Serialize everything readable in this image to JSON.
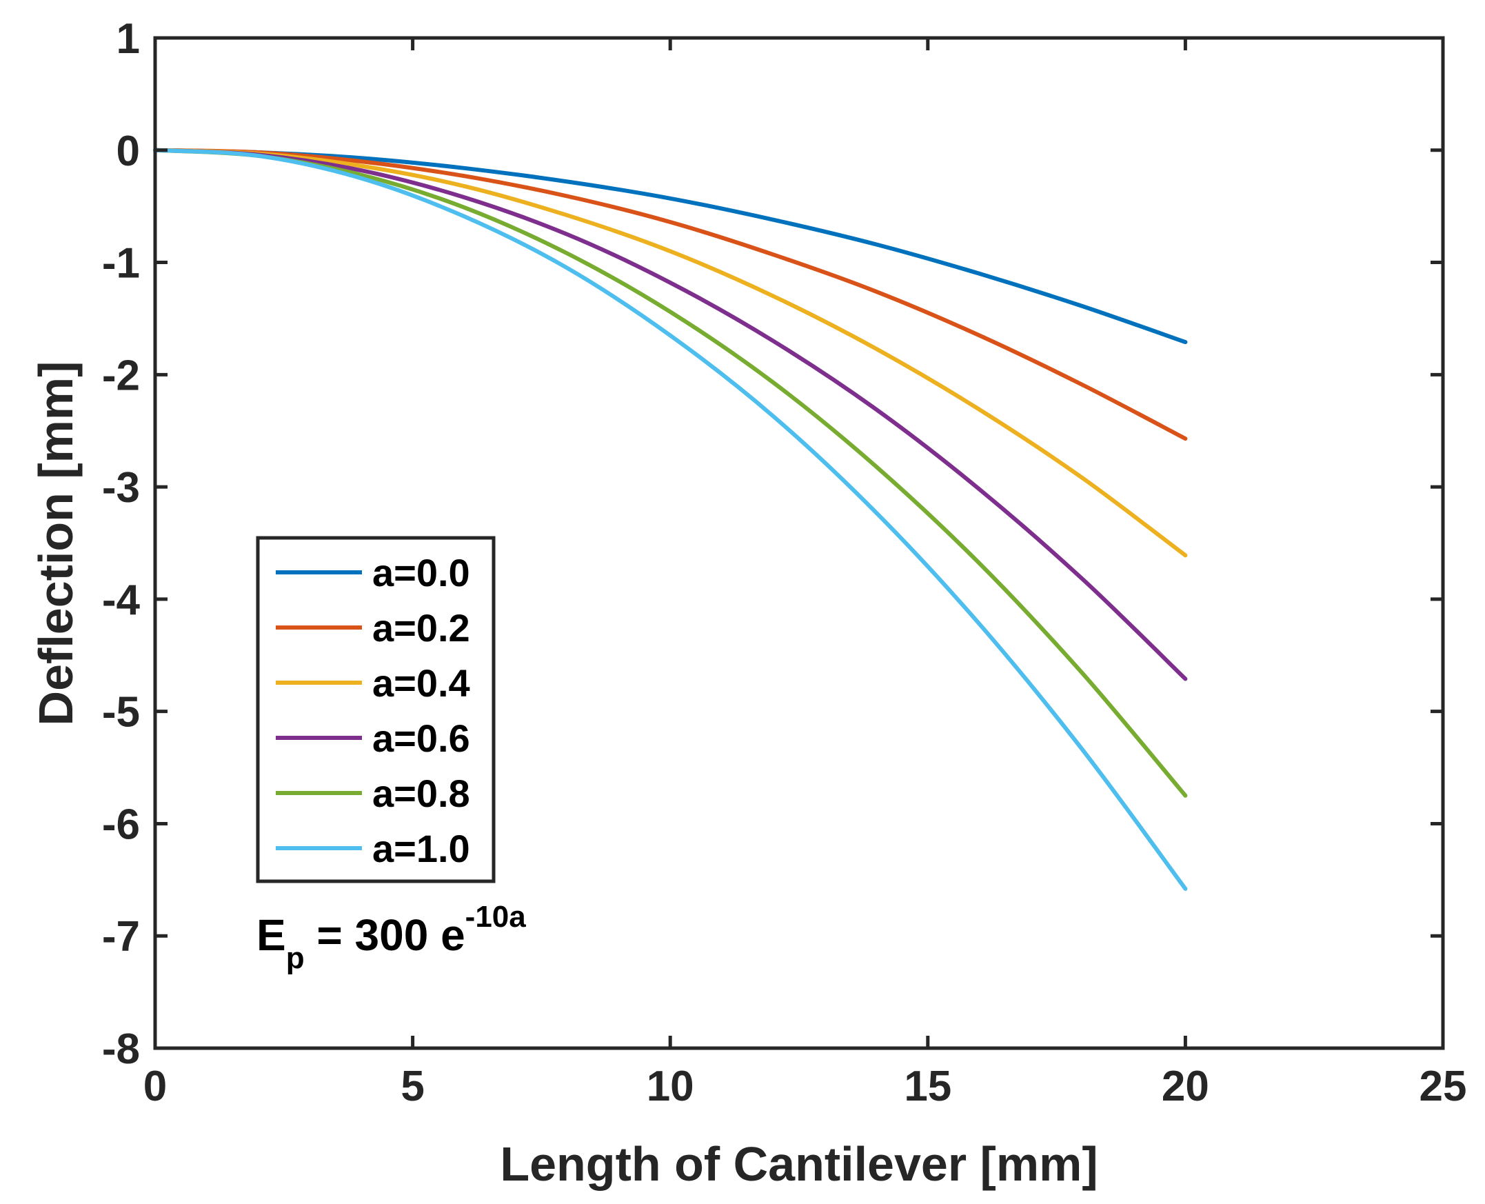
{
  "chart_data": {
    "type": "line",
    "title": "",
    "xlabel": "Length of Cantilever [mm]",
    "ylabel": "Deflection [mm]",
    "xlim": [
      0,
      25
    ],
    "ylim": [
      -8,
      1
    ],
    "xticks": [
      0,
      5,
      10,
      15,
      20,
      25
    ],
    "yticks": [
      1,
      0,
      -1,
      -2,
      -3,
      -4,
      -5,
      -6,
      -7,
      -8
    ],
    "grid": false,
    "legend_position": "center-left",
    "x": [
      0,
      2,
      4,
      6,
      8,
      10,
      12,
      14,
      16,
      18,
      20
    ],
    "series": [
      {
        "name": "a=0.0",
        "color": "#0072BD",
        "values": [
          0,
          -0.02,
          -0.07,
          -0.16,
          -0.28,
          -0.43,
          -0.62,
          -0.84,
          -1.1,
          -1.39,
          -1.71
        ]
      },
      {
        "name": "a=0.2",
        "color": "#D95319",
        "values": [
          0,
          -0.02,
          -0.1,
          -0.23,
          -0.41,
          -0.64,
          -0.93,
          -1.26,
          -1.65,
          -2.09,
          -2.57
        ]
      },
      {
        "name": "a=0.4",
        "color": "#EDB120",
        "values": [
          0,
          -0.03,
          -0.14,
          -0.32,
          -0.58,
          -0.9,
          -1.3,
          -1.77,
          -2.31,
          -2.92,
          -3.61
        ]
      },
      {
        "name": "a=0.6",
        "color": "#7E2F8E",
        "values": [
          0,
          -0.04,
          -0.18,
          -0.42,
          -0.75,
          -1.18,
          -1.7,
          -2.31,
          -3.02,
          -3.82,
          -4.71
        ]
      },
      {
        "name": "a=0.8",
        "color": "#77AC30",
        "values": [
          0,
          -0.05,
          -0.22,
          -0.51,
          -0.92,
          -1.44,
          -2.07,
          -2.82,
          -3.68,
          -4.66,
          -5.75
        ]
      },
      {
        "name": "a=1.0",
        "color": "#4DBEEE",
        "values": [
          0,
          -0.05,
          -0.25,
          -0.59,
          -1.05,
          -1.65,
          -2.37,
          -3.23,
          -4.22,
          -5.34,
          -6.58
        ]
      }
    ],
    "annotation": {
      "base": "E",
      "subscript": "p",
      "text": " = 300 e",
      "superscript": "-10a"
    }
  }
}
